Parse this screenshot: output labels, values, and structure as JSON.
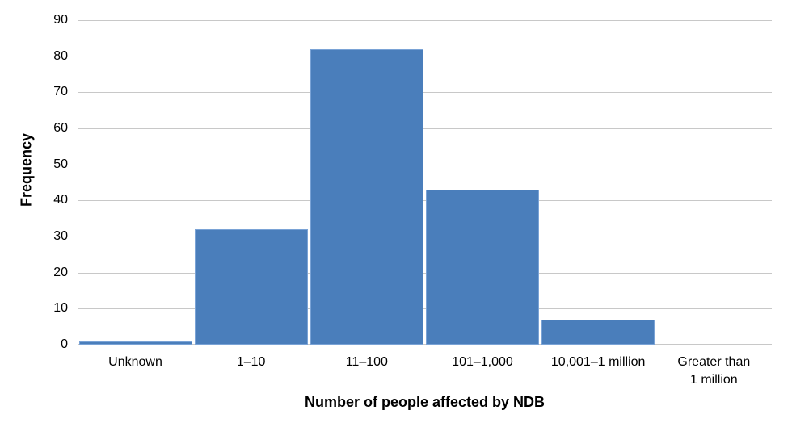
{
  "chart_data": {
    "type": "bar",
    "title": "",
    "xlabel": "Number of people affected by NDB",
    "ylabel": "Frequency",
    "categories": [
      "Unknown",
      "1–10",
      "11–100",
      "101–1,000",
      "10,001–1 million",
      "Greater than\n1 million"
    ],
    "values": [
      1,
      32,
      82,
      43,
      7,
      0
    ],
    "ylim": [
      0,
      90
    ],
    "yticks": [
      0,
      10,
      20,
      30,
      40,
      50,
      60,
      70,
      80,
      90
    ],
    "grid": true,
    "legend": null,
    "bar_color": "#4A7EBB"
  },
  "axes": {
    "x_title": "Number of people affected by NDB",
    "y_title": "Frequency"
  }
}
